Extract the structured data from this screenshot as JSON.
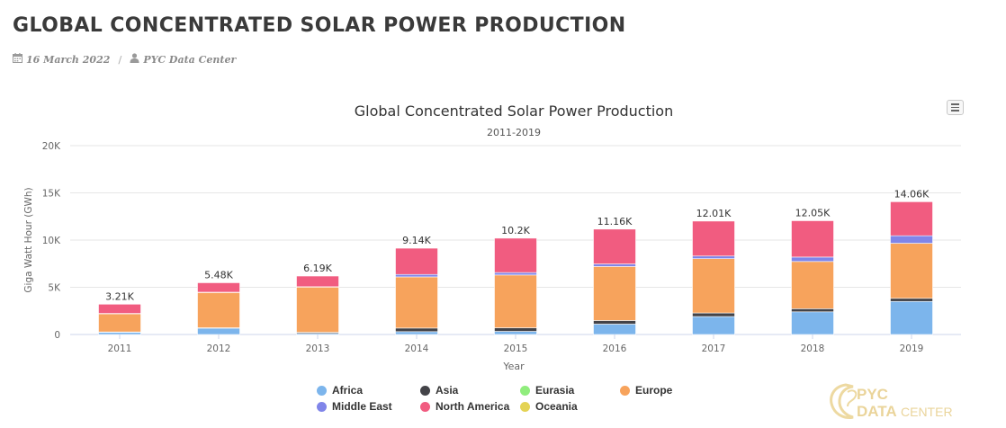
{
  "page": {
    "title": "GLOBAL CONCENTRATED SOLAR POWER PRODUCTION",
    "date": "16 March 2022",
    "separator": "/",
    "author": "PYC Data Center"
  },
  "icons": {
    "date": "calendar-icon",
    "author": "user-icon",
    "menu": "hamburger-menu-icon"
  },
  "watermark": {
    "line1": "PYC",
    "line2": "DATA",
    "line3": "CENTER"
  },
  "chart_data": {
    "type": "bar",
    "stacked": true,
    "title": "Global Concentrated Solar Power Production",
    "subtitle": "2011-2019",
    "xlabel": "Year",
    "ylabel": "Giga Watt Hour  (GWh)",
    "ylim": [
      0,
      20000
    ],
    "yticks": [
      0,
      5000,
      10000,
      15000,
      20000
    ],
    "ytick_labels": [
      "0",
      "5K",
      "10K",
      "15K",
      "20K"
    ],
    "grid": true,
    "legend_position": "bottom",
    "categories": [
      "2011",
      "2012",
      "2013",
      "2014",
      "2015",
      "2016",
      "2017",
      "2018",
      "2019"
    ],
    "totals": [
      3210,
      5480,
      6190,
      9140,
      10200,
      11160,
      12010,
      12050,
      14060
    ],
    "total_labels": [
      "3.21K",
      "5.48K",
      "6.19K",
      "9.14K",
      "10.2K",
      "11.16K",
      "12.01K",
      "12.05K",
      "14.06K"
    ],
    "series": [
      {
        "name": "Africa",
        "color": "#7cb5ec",
        "values": [
          250,
          680,
          120,
          300,
          330,
          1100,
          1900,
          2400,
          3500
        ]
      },
      {
        "name": "Asia",
        "color": "#434348",
        "values": [
          20,
          30,
          110,
          380,
          380,
          380,
          380,
          330,
          330
        ]
      },
      {
        "name": "Eurasia",
        "color": "#90ed7d",
        "values": [
          0,
          0,
          0,
          0,
          0,
          0,
          0,
          0,
          0
        ]
      },
      {
        "name": "Europe",
        "color": "#f7a35c",
        "values": [
          1950,
          3740,
          4800,
          5420,
          5590,
          5720,
          5750,
          5000,
          5830
        ]
      },
      {
        "name": "Middle East",
        "color": "#8085e9",
        "values": [
          10,
          30,
          30,
          260,
          260,
          270,
          280,
          470,
          800
        ]
      },
      {
        "name": "North America",
        "color": "#f15c80",
        "values": [
          980,
          1000,
          1130,
          2780,
          3640,
          3690,
          3700,
          3850,
          3600
        ]
      },
      {
        "name": "Oceania",
        "color": "#e4d354",
        "values": [
          0,
          0,
          0,
          0,
          0,
          0,
          0,
          0,
          0
        ]
      }
    ]
  }
}
